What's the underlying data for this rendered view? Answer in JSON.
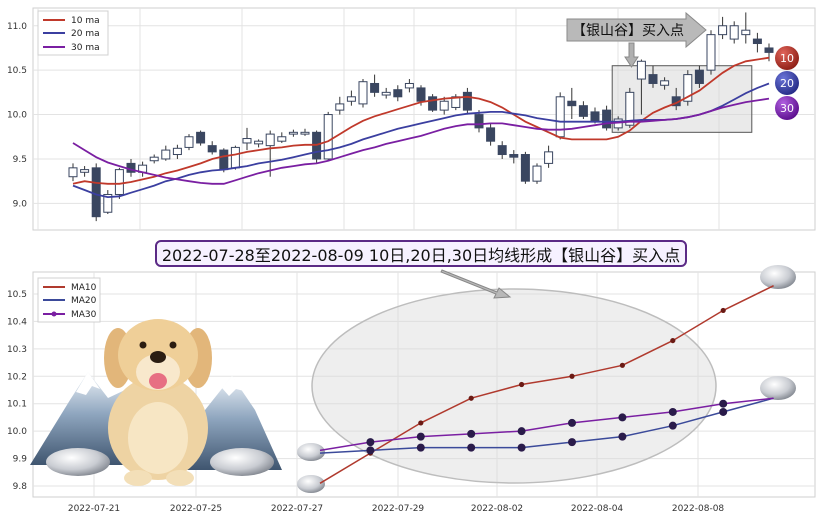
{
  "chart_data": [
    {
      "type": "candlestick",
      "title": "",
      "ylim": [
        8.7,
        11.2
      ],
      "yticks": [
        "9.0",
        "9.5",
        "10.0",
        "10.5",
        "11.0"
      ],
      "legend": {
        "placement": "top-left",
        "entries": [
          "10 ma",
          "20 ma",
          "30 ma"
        ]
      },
      "annotation_callout": "【银山谷】买入点",
      "ma_badges": [
        "10",
        "20",
        "30"
      ],
      "candles": [
        {
          "o": 9.3,
          "c": 9.4,
          "h": 9.45,
          "l": 9.25,
          "up": true
        },
        {
          "o": 9.35,
          "c": 9.38,
          "h": 9.42,
          "l": 9.3,
          "up": true
        },
        {
          "o": 9.4,
          "c": 8.85,
          "h": 9.45,
          "l": 8.8,
          "up": false
        },
        {
          "o": 8.9,
          "c": 9.1,
          "h": 9.15,
          "l": 8.88,
          "up": true
        },
        {
          "o": 9.1,
          "c": 9.38,
          "h": 9.4,
          "l": 9.05,
          "up": true
        },
        {
          "o": 9.45,
          "c": 9.35,
          "h": 9.5,
          "l": 9.3,
          "up": false
        },
        {
          "o": 9.35,
          "c": 9.43,
          "h": 9.47,
          "l": 9.3,
          "up": true
        },
        {
          "o": 9.48,
          "c": 9.52,
          "h": 9.55,
          "l": 9.45,
          "up": true
        },
        {
          "o": 9.5,
          "c": 9.6,
          "h": 9.65,
          "l": 9.48,
          "up": true
        },
        {
          "o": 9.55,
          "c": 9.62,
          "h": 9.66,
          "l": 9.5,
          "up": true
        },
        {
          "o": 9.63,
          "c": 9.75,
          "h": 9.78,
          "l": 9.6,
          "up": true
        },
        {
          "o": 9.8,
          "c": 9.68,
          "h": 9.82,
          "l": 9.65,
          "up": false
        },
        {
          "o": 9.65,
          "c": 9.58,
          "h": 9.7,
          "l": 9.55,
          "up": false
        },
        {
          "o": 9.6,
          "c": 9.38,
          "h": 9.62,
          "l": 9.35,
          "up": false
        },
        {
          "o": 9.4,
          "c": 9.63,
          "h": 9.65,
          "l": 9.38,
          "up": true
        },
        {
          "o": 9.68,
          "c": 9.73,
          "h": 9.85,
          "l": 9.6,
          "up": true
        },
        {
          "o": 9.67,
          "c": 9.7,
          "h": 9.72,
          "l": 9.63,
          "up": true
        },
        {
          "o": 9.65,
          "c": 9.78,
          "h": 9.82,
          "l": 9.3,
          "up": true
        },
        {
          "o": 9.7,
          "c": 9.75,
          "h": 9.8,
          "l": 9.68,
          "up": true
        },
        {
          "o": 9.78,
          "c": 9.8,
          "h": 9.83,
          "l": 9.75,
          "up": true
        },
        {
          "o": 9.78,
          "c": 9.8,
          "h": 9.84,
          "l": 9.76,
          "up": true
        },
        {
          "o": 9.8,
          "c": 9.5,
          "h": 9.82,
          "l": 9.45,
          "up": false
        },
        {
          "o": 9.5,
          "c": 10.0,
          "h": 10.03,
          "l": 9.48,
          "up": true
        },
        {
          "o": 10.05,
          "c": 10.12,
          "h": 10.2,
          "l": 10.0,
          "up": true
        },
        {
          "o": 10.15,
          "c": 10.2,
          "h": 10.27,
          "l": 10.1,
          "up": true
        },
        {
          "o": 10.12,
          "c": 10.37,
          "h": 10.4,
          "l": 10.08,
          "up": true
        },
        {
          "o": 10.35,
          "c": 10.25,
          "h": 10.45,
          "l": 10.2,
          "up": false
        },
        {
          "o": 10.22,
          "c": 10.25,
          "h": 10.3,
          "l": 10.18,
          "up": true
        },
        {
          "o": 10.28,
          "c": 10.2,
          "h": 10.33,
          "l": 10.15,
          "up": false
        },
        {
          "o": 10.3,
          "c": 10.35,
          "h": 10.4,
          "l": 10.25,
          "up": true
        },
        {
          "o": 10.3,
          "c": 10.15,
          "h": 10.33,
          "l": 10.1,
          "up": false
        },
        {
          "o": 10.2,
          "c": 10.05,
          "h": 10.23,
          "l": 10.03,
          "up": false
        },
        {
          "o": 10.05,
          "c": 10.15,
          "h": 10.2,
          "l": 10.0,
          "up": true
        },
        {
          "o": 10.08,
          "c": 10.2,
          "h": 10.23,
          "l": 10.05,
          "up": true
        },
        {
          "o": 10.25,
          "c": 10.05,
          "h": 10.3,
          "l": 10.0,
          "up": false
        },
        {
          "o": 10.0,
          "c": 9.85,
          "h": 10.05,
          "l": 9.8,
          "up": false
        },
        {
          "o": 9.85,
          "c": 9.7,
          "h": 9.9,
          "l": 9.65,
          "up": false
        },
        {
          "o": 9.65,
          "c": 9.55,
          "h": 9.7,
          "l": 9.5,
          "up": false
        },
        {
          "o": 9.55,
          "c": 9.52,
          "h": 9.6,
          "l": 9.45,
          "up": false
        },
        {
          "o": 9.55,
          "c": 9.25,
          "h": 9.58,
          "l": 9.22,
          "up": false
        },
        {
          "o": 9.25,
          "c": 9.42,
          "h": 9.45,
          "l": 9.22,
          "up": true
        },
        {
          "o": 9.45,
          "c": 9.58,
          "h": 9.65,
          "l": 9.4,
          "up": true
        },
        {
          "o": 9.75,
          "c": 10.2,
          "h": 10.25,
          "l": 9.72,
          "up": true
        },
        {
          "o": 10.15,
          "c": 10.1,
          "h": 10.3,
          "l": 9.95,
          "up": false
        },
        {
          "o": 10.1,
          "c": 9.98,
          "h": 10.15,
          "l": 9.95,
          "up": false
        },
        {
          "o": 10.03,
          "c": 9.93,
          "h": 10.08,
          "l": 9.9,
          "up": false
        },
        {
          "o": 10.05,
          "c": 9.85,
          "h": 10.1,
          "l": 9.82,
          "up": false
        },
        {
          "o": 9.85,
          "c": 9.95,
          "h": 9.98,
          "l": 9.82,
          "up": true
        },
        {
          "o": 9.88,
          "c": 10.25,
          "h": 10.3,
          "l": 9.85,
          "up": true
        },
        {
          "o": 10.4,
          "c": 10.6,
          "h": 10.62,
          "l": 10.0,
          "up": true
        },
        {
          "o": 10.45,
          "c": 10.35,
          "h": 10.55,
          "l": 10.3,
          "up": false
        },
        {
          "o": 10.33,
          "c": 10.38,
          "h": 10.42,
          "l": 10.28,
          "up": true
        },
        {
          "o": 10.2,
          "c": 10.1,
          "h": 10.3,
          "l": 10.05,
          "up": false
        },
        {
          "o": 10.15,
          "c": 10.45,
          "h": 10.5,
          "l": 10.1,
          "up": true
        },
        {
          "o": 10.5,
          "c": 10.35,
          "h": 10.55,
          "l": 10.3,
          "up": false
        },
        {
          "o": 10.5,
          "c": 10.9,
          "h": 10.95,
          "l": 10.45,
          "up": true
        },
        {
          "o": 10.9,
          "c": 11.0,
          "h": 11.1,
          "l": 10.85,
          "up": true
        },
        {
          "o": 10.85,
          "c": 11.0,
          "h": 11.05,
          "l": 10.8,
          "up": true
        },
        {
          "o": 10.9,
          "c": 10.95,
          "h": 11.15,
          "l": 10.8,
          "up": true
        },
        {
          "o": 10.85,
          "c": 10.8,
          "h": 10.92,
          "l": 10.7,
          "up": false
        },
        {
          "o": 10.75,
          "c": 10.7,
          "h": 10.8,
          "l": 10.6,
          "up": false
        }
      ],
      "series": [
        {
          "name": "10 ma",
          "color": "#c0392b",
          "values": [
            9.22,
            9.25,
            9.23,
            9.22,
            9.22,
            9.24,
            9.27,
            9.3,
            9.34,
            9.37,
            9.41,
            9.45,
            9.5,
            9.53,
            9.55,
            9.58,
            9.6,
            9.62,
            9.63,
            9.65,
            9.66,
            9.66,
            9.7,
            9.78,
            9.86,
            9.93,
            9.98,
            10.02,
            10.06,
            10.1,
            10.14,
            10.16,
            10.18,
            10.19,
            10.2,
            10.18,
            10.14,
            10.08,
            10.0,
            9.92,
            9.86,
            9.8,
            9.74,
            9.72,
            9.72,
            9.72,
            9.72,
            9.75,
            9.82,
            9.93,
            10.02,
            10.08,
            10.13,
            10.2,
            10.27,
            10.37,
            10.47,
            10.55,
            10.6,
            10.62,
            10.64
          ]
        },
        {
          "name": "20 ma",
          "color": "#3b3fa0",
          "values": [
            9.2,
            9.15,
            9.1,
            9.07,
            9.08,
            9.12,
            9.16,
            9.2,
            9.25,
            9.28,
            9.32,
            9.35,
            9.37,
            9.38,
            9.4,
            9.42,
            9.45,
            9.47,
            9.49,
            9.52,
            9.55,
            9.58,
            9.6,
            9.63,
            9.67,
            9.72,
            9.76,
            9.8,
            9.84,
            9.87,
            9.9,
            9.93,
            9.96,
            9.99,
            10.01,
            10.02,
            10.03,
            10.03,
            10.01,
            9.99,
            9.96,
            9.94,
            9.92,
            9.92,
            9.92,
            9.92,
            9.92,
            9.92,
            9.93,
            9.94,
            9.94,
            9.94,
            9.95,
            9.97,
            10.0,
            10.04,
            10.1,
            10.17,
            10.24,
            10.3,
            10.35
          ]
        },
        {
          "name": "30 ma",
          "color": "#7a1fa2",
          "values": [
            9.68,
            9.6,
            9.52,
            9.46,
            9.42,
            9.38,
            9.35,
            9.32,
            9.29,
            9.27,
            9.25,
            9.23,
            9.22,
            9.22,
            9.26,
            9.3,
            9.34,
            9.37,
            9.4,
            9.42,
            9.44,
            9.45,
            9.48,
            9.52,
            9.56,
            9.6,
            9.63,
            9.67,
            9.7,
            9.73,
            9.76,
            9.8,
            9.84,
            9.87,
            9.89,
            9.89,
            9.9,
            9.9,
            9.88,
            9.86,
            9.84,
            9.83,
            9.83,
            9.84,
            9.86,
            9.88,
            9.9,
            9.91,
            9.92,
            9.92,
            9.93,
            9.94,
            9.95,
            9.97,
            10.0,
            10.04,
            10.08,
            10.11,
            10.14,
            10.16,
            10.18
          ]
        }
      ]
    },
    {
      "type": "line",
      "title": "2022-07-28至2022-08-09 10日,20日,30日均线形成【银山谷】买入点",
      "xlabel": "",
      "ylabel": "",
      "ylim": [
        9.76,
        10.58
      ],
      "yticks": [
        "9.8",
        "9.9",
        "10.0",
        "10.1",
        "10.2",
        "10.3",
        "10.4",
        "10.5"
      ],
      "x": [
        "2022-07-27",
        "2022-07-28",
        "2022-07-29",
        "2022-08-01",
        "2022-08-02",
        "2022-08-03",
        "2022-08-04",
        "2022-08-05",
        "2022-08-08",
        "2022-08-09"
      ],
      "xticks": [
        "2022-07-21",
        "2022-07-25",
        "2022-07-27",
        "2022-07-29",
        "2022-08-02",
        "2022-08-04",
        "2022-08-08"
      ],
      "legend": {
        "placement": "top-left"
      },
      "series": [
        {
          "name": "MA10",
          "color": "#b03a2e",
          "values": [
            9.81,
            9.92,
            10.03,
            10.12,
            10.17,
            10.2,
            10.24,
            10.33,
            10.44,
            10.53
          ]
        },
        {
          "name": "MA20",
          "color": "#3b4a9a",
          "values": [
            9.92,
            9.93,
            9.94,
            9.94,
            9.94,
            9.96,
            9.98,
            10.02,
            10.07,
            10.12
          ]
        },
        {
          "name": "MA30",
          "color": "#7a1fa2",
          "values": [
            9.93,
            9.96,
            9.98,
            9.99,
            10.0,
            10.03,
            10.05,
            10.07,
            10.1,
            10.12
          ]
        }
      ]
    }
  ]
}
